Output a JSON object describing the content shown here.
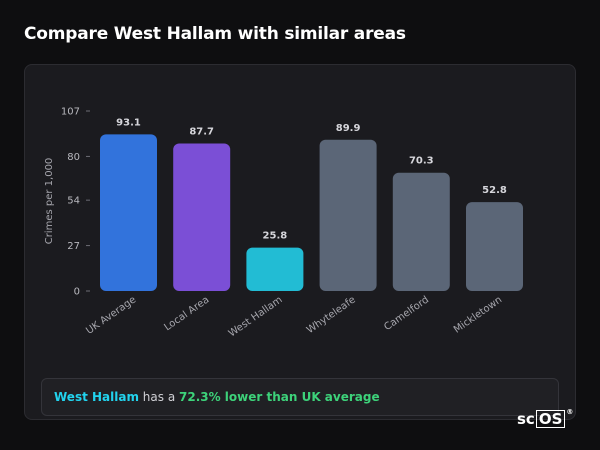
{
  "header": {
    "title": "Compare West Hallam with similar areas"
  },
  "chart_data": {
    "type": "bar",
    "ylabel": "Crimes per 1,000",
    "xlabel": "",
    "ylim": [
      0,
      107
    ],
    "yticks": [
      0,
      27,
      54,
      80,
      107
    ],
    "categories": [
      "UK Average",
      "Local Area",
      "West Hallam",
      "Whyteleafe",
      "Camelford",
      "Mickletown"
    ],
    "values": [
      93.1,
      87.7,
      25.8,
      89.9,
      70.3,
      52.8
    ],
    "value_labels": [
      "93.1",
      "87.7",
      "25.8",
      "89.9",
      "70.3",
      "52.8"
    ],
    "bar_colors": [
      "#3273dc",
      "#7b4fd6",
      "#22bcd4",
      "#5b6677",
      "#5b6677",
      "#5b6677"
    ],
    "grid": false,
    "legend": "none"
  },
  "summary": {
    "area": "West Hallam",
    "middle": " has a ",
    "stat": "72.3% lower than UK average"
  },
  "logo": {
    "prefix": "sc",
    "boxed": "OS",
    "mark": "®"
  },
  "colors": {
    "background": "#0e0e10",
    "card": "#1b1b1f",
    "highlight": "#22d3ee",
    "positive": "#3dd27a"
  }
}
